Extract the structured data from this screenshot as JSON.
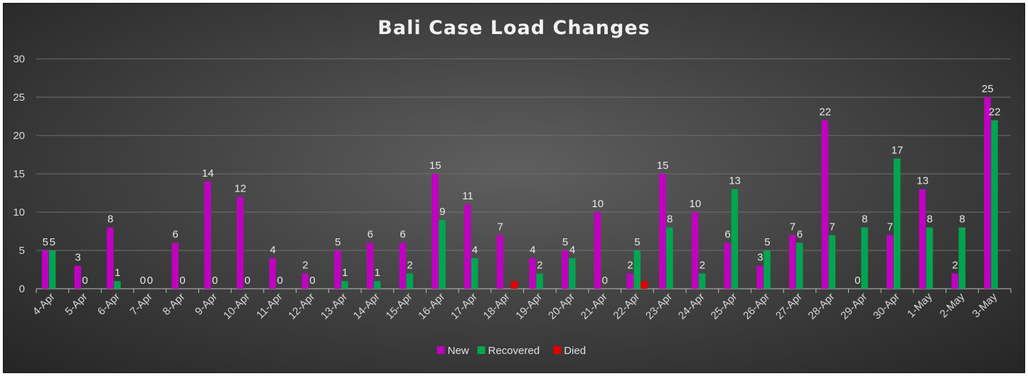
{
  "chart_data": {
    "type": "bar",
    "title": "Bali Case Load Changes",
    "xlabel": "",
    "ylabel": "",
    "ylim": [
      0,
      30
    ],
    "yticks": [
      0,
      5,
      10,
      15,
      20,
      25,
      30
    ],
    "grid": true,
    "legend_position": "bottom",
    "categories": [
      "4-Apr",
      "5-Apr",
      "6-Apr",
      "7-Apr",
      "8-Apr",
      "9-Apr",
      "10-Apr",
      "11-Apr",
      "12-Apr",
      "13-Apr",
      "14-Apr",
      "15-Apr",
      "16-Apr",
      "17-Apr",
      "18-Apr",
      "19-Apr",
      "20-Apr",
      "21-Apr",
      "22-Apr",
      "23-Apr",
      "24-Apr",
      "25-Apr",
      "26-Apr",
      "27-Apr",
      "28-Apr",
      "29-Apr",
      "30-Apr",
      "1-May",
      "2-May",
      "3-May"
    ],
    "series": [
      {
        "name": "New",
        "color": "#c000c0",
        "values": [
          5,
          3,
          8,
          0,
          6,
          14,
          12,
          4,
          2,
          5,
          6,
          6,
          15,
          11,
          7,
          4,
          5,
          10,
          2,
          15,
          10,
          6,
          3,
          7,
          22,
          0,
          7,
          13,
          2,
          25
        ],
        "labels": [
          5,
          3,
          8,
          0,
          6,
          14,
          12,
          4,
          2,
          5,
          6,
          6,
          15,
          11,
          7,
          4,
          5,
          10,
          2,
          15,
          10,
          6,
          3,
          7,
          22,
          0,
          7,
          13,
          2,
          25
        ]
      },
      {
        "name": "Recovered",
        "color": "#00a550",
        "values": [
          5,
          0,
          1,
          0,
          0,
          0,
          0,
          0,
          0,
          1,
          1,
          2,
          9,
          4,
          0,
          2,
          4,
          0,
          5,
          8,
          2,
          13,
          5,
          6,
          7,
          8,
          17,
          8,
          8,
          22
        ],
        "labels": [
          5,
          0,
          1,
          0,
          0,
          0,
          0,
          0,
          0,
          1,
          1,
          2,
          9,
          4,
          null,
          2,
          4,
          0,
          5,
          8,
          2,
          13,
          5,
          6,
          7,
          8,
          17,
          8,
          8,
          22
        ]
      },
      {
        "name": "Died",
        "color": "#e00000",
        "values": [
          0,
          0,
          0,
          0,
          0,
          0,
          0,
          0,
          0,
          0,
          0,
          0,
          0,
          0,
          1,
          0,
          0,
          0,
          1,
          0,
          0,
          0,
          0,
          0,
          0,
          0,
          0,
          0,
          0,
          0
        ]
      }
    ]
  }
}
